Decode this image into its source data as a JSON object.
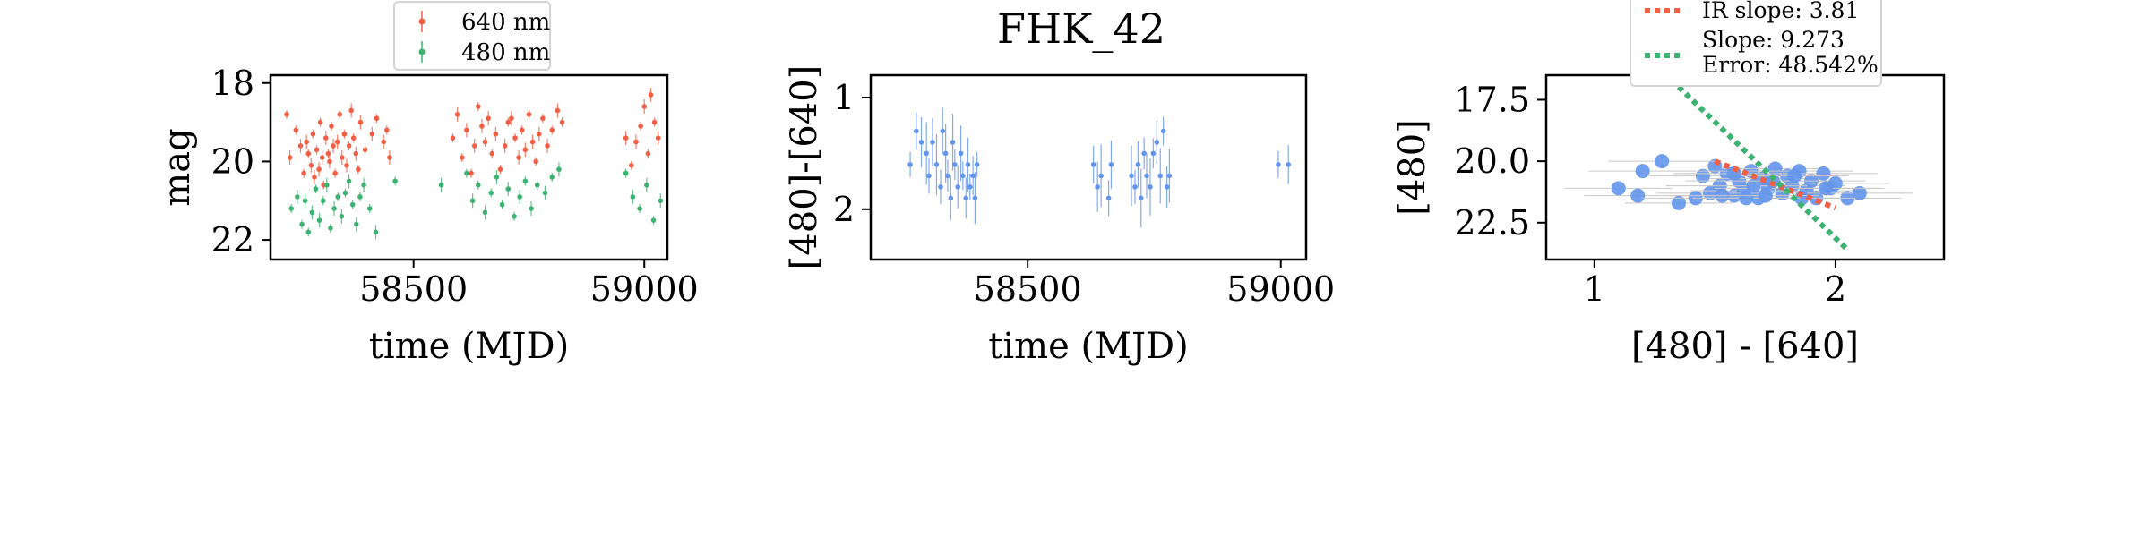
{
  "figure": {
    "title": "FHK_42",
    "colors": {
      "red": "#f25f45",
      "green": "#3cb371",
      "blue": "#6495ed",
      "error_bar": "#c8c8c8"
    }
  },
  "chart_data": [
    {
      "type": "scatter",
      "title": "",
      "xlabel": "time (MJD)",
      "ylabel": "mag",
      "xlim": [
        58190,
        59050
      ],
      "ylim": [
        22.5,
        17.8
      ],
      "y_inverted": true,
      "xticks": [
        58500,
        59000
      ],
      "yticks": [
        18,
        20,
        22
      ],
      "legend": {
        "placement": "above",
        "entries": [
          "640 nm",
          "480 nm"
        ]
      },
      "series": [
        {
          "name": "640 nm",
          "color": "#f25f45",
          "x": [
            58225,
            58232,
            58245,
            58255,
            58262,
            58268,
            58272,
            58278,
            58282,
            58285,
            58290,
            58295,
            58298,
            58302,
            58305,
            58310,
            58315,
            58318,
            58322,
            58326,
            58330,
            58335,
            58340,
            58345,
            58350,
            58355,
            58360,
            58365,
            58370,
            58375,
            58380,
            58385,
            58395,
            58410,
            58420,
            58435,
            58442,
            58448,
            58585,
            58595,
            58605,
            58615,
            58625,
            58632,
            58640,
            58648,
            58655,
            58662,
            58670,
            58678,
            58688,
            58698,
            58705,
            58712,
            58720,
            58728,
            58735,
            58742,
            58750,
            58758,
            58765,
            58772,
            58780,
            58790,
            58800,
            58812,
            58822,
            58960,
            58972,
            58982,
            58992,
            59000,
            59008,
            59014,
            59022,
            59030
          ],
          "y": [
            18.8,
            19.9,
            19.2,
            19.6,
            20.3,
            19.5,
            19.8,
            20.1,
            19.3,
            20.4,
            19.7,
            20.2,
            19.0,
            19.9,
            20.6,
            19.4,
            19.8,
            20.0,
            19.1,
            19.6,
            20.3,
            19.5,
            18.8,
            19.9,
            19.3,
            20.1,
            19.6,
            18.7,
            19.4,
            19.8,
            20.2,
            19.0,
            19.7,
            19.3,
            18.9,
            19.5,
            19.2,
            19.9,
            19.4,
            18.8,
            19.9,
            19.2,
            20.3,
            19.6,
            18.6,
            19.1,
            19.5,
            18.9,
            19.8,
            19.3,
            20.2,
            19.6,
            19.0,
            18.9,
            19.4,
            19.9,
            19.2,
            19.7,
            18.8,
            19.5,
            20.0,
            19.3,
            18.9,
            19.6,
            19.2,
            18.7,
            19.0,
            19.4,
            20.1,
            19.5,
            19.1,
            18.6,
            19.8,
            18.3,
            19.0,
            19.4
          ]
        },
        {
          "name": "480 nm",
          "color": "#3cb371",
          "x": [
            58235,
            58248,
            58258,
            58265,
            58272,
            58280,
            58288,
            58296,
            58304,
            58312,
            58320,
            58328,
            58336,
            58344,
            58352,
            58360,
            58368,
            58376,
            58384,
            58392,
            58405,
            58418,
            58460,
            58560,
            58615,
            58628,
            58640,
            58655,
            58668,
            58680,
            58692,
            58705,
            58718,
            58730,
            58742,
            58755,
            58768,
            58785,
            58800,
            58815,
            58960,
            58975,
            58990,
            59005,
            59020,
            59035
          ],
          "y": [
            21.2,
            20.9,
            21.6,
            21.0,
            21.8,
            21.3,
            20.7,
            21.5,
            21.0,
            20.6,
            21.7,
            21.2,
            20.9,
            21.4,
            20.8,
            20.5,
            21.1,
            21.6,
            20.9,
            20.6,
            21.2,
            21.8,
            20.5,
            20.6,
            20.3,
            21.0,
            20.6,
            21.3,
            20.8,
            20.4,
            21.1,
            20.7,
            21.4,
            20.9,
            20.5,
            21.2,
            20.6,
            20.8,
            20.4,
            20.2,
            20.3,
            20.9,
            21.2,
            20.6,
            21.5,
            21.0
          ]
        }
      ]
    },
    {
      "type": "scatter",
      "title": "",
      "xlabel": "time (MJD)",
      "ylabel": "[480]-[640]",
      "xlim": [
        58190,
        59050
      ],
      "ylim": [
        2.45,
        0.8
      ],
      "y_inverted": true,
      "xticks": [
        58500,
        59000
      ],
      "yticks": [
        1,
        2
      ],
      "series": [
        {
          "name": "",
          "color": "#6495ed",
          "x": [
            58268,
            58280,
            58290,
            58300,
            58305,
            58312,
            58320,
            58328,
            58332,
            58338,
            58342,
            58348,
            58352,
            58356,
            58362,
            58368,
            58372,
            58378,
            58382,
            58386,
            58392,
            58396,
            58400,
            58630,
            58638,
            58645,
            58660,
            58665,
            58705,
            58712,
            58718,
            58724,
            58730,
            58735,
            58742,
            58748,
            58755,
            58762,
            58768,
            58775,
            58780,
            58995,
            59015
          ],
          "y": [
            1.6,
            1.3,
            1.4,
            1.5,
            1.7,
            1.4,
            1.6,
            1.8,
            1.3,
            1.5,
            1.7,
            1.9,
            1.4,
            1.6,
            1.8,
            1.5,
            1.7,
            1.9,
            1.6,
            1.8,
            1.7,
            1.9,
            1.6,
            1.6,
            1.8,
            1.7,
            1.9,
            1.6,
            1.7,
            1.8,
            1.6,
            1.9,
            1.5,
            1.7,
            1.8,
            1.5,
            1.4,
            1.7,
            1.3,
            1.8,
            1.7,
            1.6,
            1.6
          ]
        }
      ]
    },
    {
      "type": "scatter",
      "title": "",
      "xlabel": "[480] - [640]",
      "ylabel": "[480]",
      "xlim": [
        0.8,
        2.45
      ],
      "ylim": [
        24.0,
        16.5
      ],
      "y_inverted": true,
      "xticks": [
        1,
        2
      ],
      "yticks": [
        17.5,
        20.0,
        22.5
      ],
      "legend": {
        "placement": "above",
        "entries": [
          "IR slope: 3.81",
          "Slope: 9.273\nError: 48.542%"
        ]
      },
      "series": [
        {
          "name": "",
          "color": "#6495ed",
          "x": [
            1.1,
            1.18,
            1.2,
            1.35,
            1.45,
            1.48,
            1.5,
            1.52,
            1.55,
            1.58,
            1.6,
            1.62,
            1.65,
            1.68,
            1.7,
            1.72,
            1.75,
            1.78,
            1.8,
            1.82,
            1.85,
            1.88,
            1.9,
            1.92,
            1.95,
            1.98,
            2.0,
            2.05,
            2.1,
            1.42,
            1.58,
            1.66,
            1.74,
            1.86,
            1.96,
            1.28,
            1.53,
            1.63,
            1.71,
            1.83
          ],
          "y": [
            21.1,
            21.4,
            20.4,
            21.7,
            20.6,
            21.3,
            20.2,
            21.0,
            20.5,
            21.4,
            20.8,
            21.2,
            20.4,
            21.5,
            20.7,
            21.1,
            20.3,
            21.3,
            20.6,
            21.0,
            20.4,
            21.2,
            20.8,
            21.5,
            20.5,
            21.1,
            20.9,
            21.5,
            21.3,
            21.5,
            20.5,
            21.0,
            20.8,
            21.5,
            21.1,
            20.0,
            21.4,
            21.5,
            21.4,
            20.6
          ]
        },
        {
          "name": "IR slope: 3.81",
          "kind": "fit-line",
          "color": "#f25f45",
          "x": [
            1.5,
            2.0
          ],
          "y": [
            20.0,
            21.9
          ]
        },
        {
          "name": "Slope: 9.273\nError: 48.542%",
          "kind": "fit-line",
          "color": "#3cb371",
          "x": [
            1.32,
            2.05
          ],
          "y": [
            16.7,
            23.6
          ]
        }
      ]
    }
  ]
}
